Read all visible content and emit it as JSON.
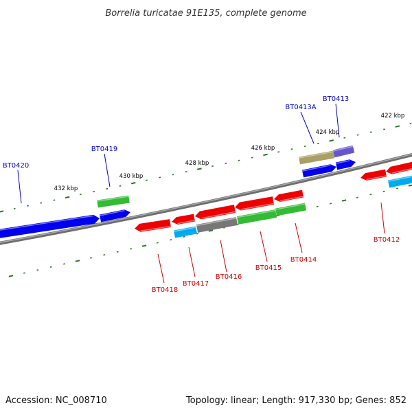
{
  "title": "Borrelia turicatae 91E135, complete genome",
  "footer": {
    "accession": "Accession: NC_008710",
    "summary": "Topology: linear; Length: 917,330 bp; Genes: 852"
  },
  "scale_labels": [
    "422 kbp",
    "424 kbp",
    "426 kbp",
    "428 kbp",
    "430 kbp",
    "432 kbp"
  ],
  "colors": {
    "forward_label": "#0000cc",
    "reverse_label": "#cc0000",
    "blue": "#0000ee",
    "red": "#ee0000",
    "green": "#33bb33",
    "cyan": "#00aaee",
    "gray": "#777777",
    "olive": "#aaa066",
    "purple": "#6655cc",
    "tick": "#227722",
    "backbone": "#888888"
  },
  "forward_genes": [
    "BT0420",
    "BT0419",
    "BT0413A",
    "BT0413"
  ],
  "reverse_genes": [
    "BT0418",
    "BT0417",
    "BT0416",
    "BT0415",
    "BT0414",
    "BT0412"
  ]
}
